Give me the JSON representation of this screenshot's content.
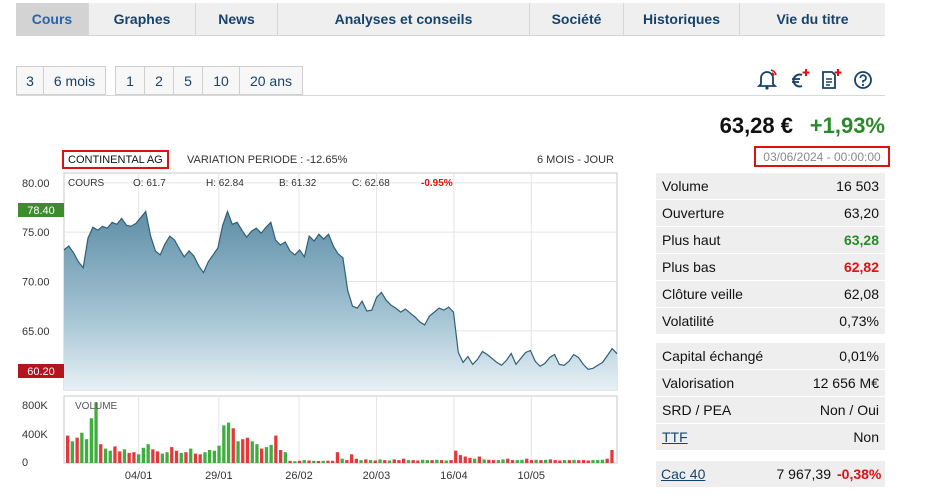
{
  "tabs": [
    "Cours",
    "Graphes",
    "News",
    "Analyses et conseils",
    "Société",
    "Historiques",
    "Vie du titre"
  ],
  "periods_a": [
    "3",
    "6 mois"
  ],
  "periods_b": [
    "1",
    "2",
    "5",
    "10",
    "20 ans"
  ],
  "price": "63,28 €",
  "change": "+1,93%",
  "date": "03/06/2024 - 00:00:00",
  "chart": {
    "name": "CONTINENTAL AG",
    "variation": "VARIATION PERIODE : -12.65%",
    "period": "6 MOIS - JOUR",
    "cours_label": "COURS",
    "o": "O: 61.7",
    "h": "H: 62.84",
    "b": "B: 61.32",
    "c": "C: 62.68",
    "pct": "-0.95%",
    "volume_label": "VOLUME",
    "hi_badge": "78.40",
    "lo_badge": "60.20"
  },
  "chart_data": {
    "type": "area",
    "y_ticks": [
      "80.00",
      "75.00",
      "70.00",
      "65.00"
    ],
    "y_range": [
      59,
      81
    ],
    "x_labels": [
      "04/01",
      "29/01",
      "26/02",
      "20/03",
      "16/04",
      "10/05"
    ],
    "prices": [
      73.2,
      73.6,
      72.9,
      72.0,
      71.4,
      74.4,
      75.5,
      75.2,
      75.6,
      75.4,
      76.0,
      75.8,
      76.4,
      75.7,
      75.6,
      75.9,
      76.5,
      77.1,
      74.6,
      73.1,
      72.7,
      73.8,
      74.6,
      74.2,
      73.3,
      72.5,
      73.1,
      72.6,
      71.6,
      70.9,
      72.0,
      72.7,
      73.4,
      75.7,
      77.1,
      75.8,
      76.0,
      75.2,
      74.5,
      75.1,
      75.4,
      74.9,
      75.5,
      76.0,
      74.2,
      73.7,
      74.0,
      73.1,
      72.7,
      73.2,
      72.5,
      74.6,
      74.1,
      74.8,
      74.3,
      74.8,
      73.6,
      72.8,
      72.4,
      69.1,
      67.5,
      67.3,
      68.0,
      67.0,
      67.1,
      68.4,
      68.9,
      68.1,
      67.6,
      67.3,
      66.9,
      67.2,
      66.8,
      66.4,
      65.9,
      65.6,
      66.5,
      66.9,
      67.3,
      67.1,
      67.4,
      66.9,
      62.8,
      61.8,
      62.4,
      61.6,
      62.1,
      62.9,
      62.6,
      62.2,
      61.8,
      61.5,
      62.0,
      62.7,
      61.6,
      62.2,
      62.8,
      63.0,
      61.9,
      61.4,
      61.7,
      62.3,
      62.6,
      61.6,
      61.5,
      61.9,
      62.6,
      62.3,
      61.6,
      61.1,
      61.2,
      61.5,
      61.8,
      62.5,
      63.2,
      62.68
    ],
    "volume_ticks": [
      "800K",
      "400K",
      "0"
    ],
    "volume_max": 900000,
    "volumes": [
      {
        "v": 380000,
        "up": false
      },
      {
        "v": 300000,
        "up": true
      },
      {
        "v": 350000,
        "up": false
      },
      {
        "v": 420000,
        "up": true
      },
      {
        "v": 330000,
        "up": true
      },
      {
        "v": 620000,
        "up": true
      },
      {
        "v": 840000,
        "up": true
      },
      {
        "v": 260000,
        "up": false
      },
      {
        "v": 200000,
        "up": true
      },
      {
        "v": 170000,
        "up": true
      },
      {
        "v": 230000,
        "up": false
      },
      {
        "v": 160000,
        "up": false
      },
      {
        "v": 190000,
        "up": true
      },
      {
        "v": 140000,
        "up": false
      },
      {
        "v": 150000,
        "up": false
      },
      {
        "v": 120000,
        "up": true
      },
      {
        "v": 210000,
        "up": true
      },
      {
        "v": 260000,
        "up": true
      },
      {
        "v": 190000,
        "up": false
      },
      {
        "v": 160000,
        "up": false
      },
      {
        "v": 130000,
        "up": true
      },
      {
        "v": 150000,
        "up": true
      },
      {
        "v": 220000,
        "up": false
      },
      {
        "v": 170000,
        "up": false
      },
      {
        "v": 140000,
        "up": true
      },
      {
        "v": 150000,
        "up": false
      },
      {
        "v": 200000,
        "up": true
      },
      {
        "v": 130000,
        "up": false
      },
      {
        "v": 120000,
        "up": false
      },
      {
        "v": 150000,
        "up": true
      },
      {
        "v": 180000,
        "up": true
      },
      {
        "v": 170000,
        "up": true
      },
      {
        "v": 240000,
        "up": true
      },
      {
        "v": 520000,
        "up": true
      },
      {
        "v": 560000,
        "up": true
      },
      {
        "v": 480000,
        "up": false
      },
      {
        "v": 300000,
        "up": true
      },
      {
        "v": 330000,
        "up": false
      },
      {
        "v": 350000,
        "up": false
      },
      {
        "v": 300000,
        "up": true
      },
      {
        "v": 260000,
        "up": true
      },
      {
        "v": 200000,
        "up": false
      },
      {
        "v": 220000,
        "up": true
      },
      {
        "v": 250000,
        "up": true
      },
      {
        "v": 380000,
        "up": false
      },
      {
        "v": 180000,
        "up": false
      },
      {
        "v": 150000,
        "up": true
      },
      {
        "v": 30000,
        "up": false
      },
      {
        "v": 25000,
        "up": true
      },
      {
        "v": 30000,
        "up": false
      },
      {
        "v": 40000,
        "up": true
      },
      {
        "v": 35000,
        "up": false
      },
      {
        "v": 30000,
        "up": true
      },
      {
        "v": 28000,
        "up": false
      },
      {
        "v": 30000,
        "up": true
      },
      {
        "v": 32000,
        "up": false
      },
      {
        "v": 30000,
        "up": false
      },
      {
        "v": 150000,
        "up": false
      },
      {
        "v": 60000,
        "up": true
      },
      {
        "v": 40000,
        "up": false
      },
      {
        "v": 120000,
        "up": false
      },
      {
        "v": 60000,
        "up": false
      },
      {
        "v": 40000,
        "up": true
      },
      {
        "v": 50000,
        "up": false
      },
      {
        "v": 40000,
        "up": true
      },
      {
        "v": 35000,
        "up": false
      },
      {
        "v": 50000,
        "up": true
      },
      {
        "v": 40000,
        "up": false
      },
      {
        "v": 35000,
        "up": true
      },
      {
        "v": 50000,
        "up": false
      },
      {
        "v": 40000,
        "up": false
      },
      {
        "v": 60000,
        "up": false
      },
      {
        "v": 40000,
        "up": true
      },
      {
        "v": 40000,
        "up": false
      },
      {
        "v": 35000,
        "up": false
      },
      {
        "v": 45000,
        "up": true
      },
      {
        "v": 40000,
        "up": true
      },
      {
        "v": 40000,
        "up": false
      },
      {
        "v": 45000,
        "up": true
      },
      {
        "v": 40000,
        "up": false
      },
      {
        "v": 35000,
        "up": true
      },
      {
        "v": 40000,
        "up": false
      },
      {
        "v": 170000,
        "up": false
      },
      {
        "v": 110000,
        "up": false
      },
      {
        "v": 90000,
        "up": false
      },
      {
        "v": 70000,
        "up": false
      },
      {
        "v": 60000,
        "up": true
      },
      {
        "v": 90000,
        "up": false
      },
      {
        "v": 50000,
        "up": true
      },
      {
        "v": 45000,
        "up": false
      },
      {
        "v": 40000,
        "up": false
      },
      {
        "v": 40000,
        "up": true
      },
      {
        "v": 50000,
        "up": true
      },
      {
        "v": 60000,
        "up": false
      },
      {
        "v": 40000,
        "up": false
      },
      {
        "v": 40000,
        "up": true
      },
      {
        "v": 45000,
        "up": true
      },
      {
        "v": 60000,
        "up": false
      },
      {
        "v": 40000,
        "up": false
      },
      {
        "v": 45000,
        "up": true
      },
      {
        "v": 40000,
        "up": false
      },
      {
        "v": 45000,
        "up": true
      },
      {
        "v": 50000,
        "up": false
      },
      {
        "v": 40000,
        "up": false
      },
      {
        "v": 35000,
        "up": false
      },
      {
        "v": 40000,
        "up": true
      },
      {
        "v": 40000,
        "up": false
      },
      {
        "v": 45000,
        "up": true
      },
      {
        "v": 40000,
        "up": false
      },
      {
        "v": 40000,
        "up": false
      },
      {
        "v": 35000,
        "up": false
      },
      {
        "v": 40000,
        "up": true
      },
      {
        "v": 40000,
        "up": true
      },
      {
        "v": 45000,
        "up": true
      },
      {
        "v": 60000,
        "up": false
      },
      {
        "v": 180000,
        "up": false
      }
    ]
  },
  "stats1": [
    {
      "label": "Volume",
      "value": "16 503",
      "cls": ""
    },
    {
      "label": "Ouverture",
      "value": "63,20",
      "cls": ""
    },
    {
      "label": "Plus haut",
      "value": "63,28",
      "cls": "green"
    },
    {
      "label": "Plus bas",
      "value": "62,82",
      "cls": "red"
    },
    {
      "label": "Clôture veille",
      "value": "62,08",
      "cls": ""
    },
    {
      "label": "Volatilité",
      "value": "0,73%",
      "cls": ""
    }
  ],
  "stats2": [
    {
      "label": "Capital échangé",
      "value": "0,01%",
      "cls": ""
    },
    {
      "label": "Valorisation",
      "value": "12 656 M€",
      "cls": ""
    },
    {
      "label": "SRD / PEA",
      "value": "Non / Oui",
      "cls": ""
    },
    {
      "label": "TTF",
      "value": "Non",
      "cls": "link"
    }
  ],
  "index": {
    "name": "Cac 40",
    "value": "7 967,39",
    "change": "-0,38%"
  }
}
